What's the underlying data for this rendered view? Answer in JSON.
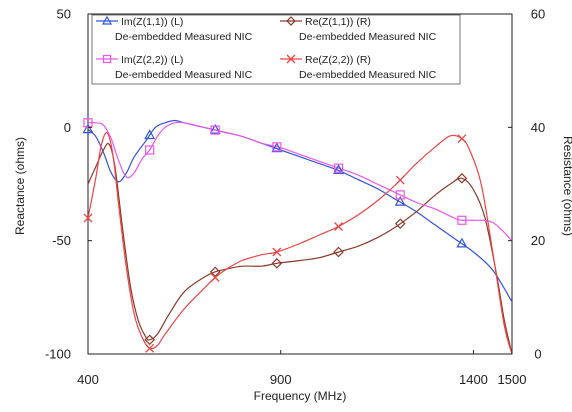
{
  "chart_data": {
    "type": "line",
    "title": "",
    "xlabel": "Frequency (MHz)",
    "ylabel_left": "Reactance (ohms)",
    "ylabel_right": "Resistance (ohms)",
    "xlim": [
      400,
      1500
    ],
    "ylim_left": [
      -100,
      50
    ],
    "ylim_right": [
      0,
      60
    ],
    "x_ticks": [
      {
        "value": 400,
        "label": "400"
      },
      {
        "value": 900,
        "label": "900"
      },
      {
        "value": 1400,
        "label": "1400"
      },
      {
        "value": 1500,
        "label": "1500"
      }
    ],
    "y_left_ticks": [
      {
        "value": 50,
        "label": "50"
      },
      {
        "value": 0,
        "label": "0"
      },
      {
        "value": -50,
        "label": "-50"
      },
      {
        "value": -100,
        "label": "-100"
      }
    ],
    "y_right_ticks": [
      {
        "value": 60,
        "label": "60"
      },
      {
        "value": 40,
        "label": "40"
      },
      {
        "value": 20,
        "label": "20"
      },
      {
        "value": 0,
        "label": "0"
      }
    ],
    "grid": false,
    "legend_position": "top",
    "series": [
      {
        "name": "Im(Z(1,1)) (L)",
        "subname": "De-embedded Measured NIC",
        "axis": "left",
        "color": "#3355dd",
        "marker": "triangle",
        "x": [
          400,
          420,
          440,
          460,
          480,
          500,
          520,
          550,
          575,
          600,
          625,
          650,
          700,
          750,
          800,
          850,
          900,
          950,
          1000,
          1050,
          1100,
          1150,
          1200,
          1250,
          1300,
          1350,
          1400,
          1450,
          1500
        ],
        "y": [
          -1,
          -4,
          -11,
          -20,
          -24,
          -20,
          -13,
          -6,
          0,
          2,
          3,
          2,
          0,
          -2,
          -4,
          -7,
          -10,
          -13,
          -16,
          -19,
          -23,
          -27,
          -32,
          -37,
          -43,
          -49,
          -55,
          -63,
          -77
        ],
        "marker_x": [
          400,
          560,
          730,
          890,
          1050,
          1210,
          1370
        ]
      },
      {
        "name": "Re(Z(1,1)) (R)",
        "subname": "De-embedded Measured NIC",
        "axis": "right",
        "color": "#8b3a2a",
        "marker": "diamond",
        "x": [
          400,
          420,
          440,
          455,
          470,
          490,
          510,
          530,
          550,
          560,
          580,
          610,
          650,
          700,
          730,
          760,
          800,
          850,
          890,
          950,
          1000,
          1050,
          1100,
          1150,
          1200,
          1250,
          1300,
          1340,
          1370,
          1400,
          1430,
          1460,
          1480,
          1500
        ],
        "y": [
          30,
          33,
          36,
          37,
          33,
          22,
          12,
          6,
          3,
          2.5,
          3.5,
          7,
          11,
          13.5,
          14.5,
          15,
          15.5,
          15.5,
          16,
          16.5,
          17,
          18,
          19,
          20.5,
          22.5,
          25,
          28,
          30,
          31,
          29,
          24,
          14,
          6,
          0
        ],
        "marker_x": [
          560,
          730,
          890,
          1050,
          1210,
          1370
        ]
      },
      {
        "name": "Im(Z(2,2)) (L)",
        "subname": "De-embedded Measured NIC",
        "axis": "left",
        "color": "#ee55ee",
        "marker": "square",
        "x": [
          400,
          420,
          440,
          460,
          480,
          500,
          520,
          540,
          560,
          580,
          600,
          625,
          650,
          700,
          750,
          800,
          850,
          900,
          950,
          1000,
          1050,
          1100,
          1150,
          1200,
          1250,
          1300,
          1350,
          1370,
          1400,
          1450,
          1500
        ],
        "y": [
          2,
          2,
          1,
          -5,
          -15,
          -22,
          -20,
          -14,
          -10,
          -4,
          0,
          2,
          2,
          0,
          -2,
          -4,
          -7,
          -9,
          -12,
          -15,
          -18,
          -21,
          -25,
          -29,
          -33,
          -36,
          -40,
          -41,
          -41,
          -42,
          -50
        ],
        "marker_x": [
          400,
          560,
          730,
          890,
          1050,
          1210,
          1370
        ]
      },
      {
        "name": "Re(Z(2,2)) (R)",
        "subname": "De-embedded Measured NIC",
        "axis": "right",
        "color": "#ee4444",
        "marker": "x",
        "x": [
          400,
          420,
          435,
          450,
          465,
          480,
          500,
          520,
          540,
          560,
          580,
          600,
          650,
          700,
          730,
          760,
          800,
          850,
          890,
          950,
          1000,
          1050,
          1100,
          1150,
          1200,
          1250,
          1300,
          1340,
          1370,
          1390,
          1420,
          1450,
          1480,
          1500
        ],
        "y": [
          24,
          31,
          37,
          39,
          35,
          26,
          15,
          7,
          3,
          1,
          1.5,
          3.5,
          8,
          11.5,
          13.5,
          15,
          16.5,
          17.5,
          18,
          19.5,
          21,
          22.5,
          24.5,
          27,
          30,
          33.5,
          36.5,
          38.5,
          38,
          36,
          30,
          18,
          5,
          0
        ],
        "marker_x": [
          400,
          560,
          730,
          890,
          1050,
          1210,
          1370
        ]
      }
    ]
  }
}
